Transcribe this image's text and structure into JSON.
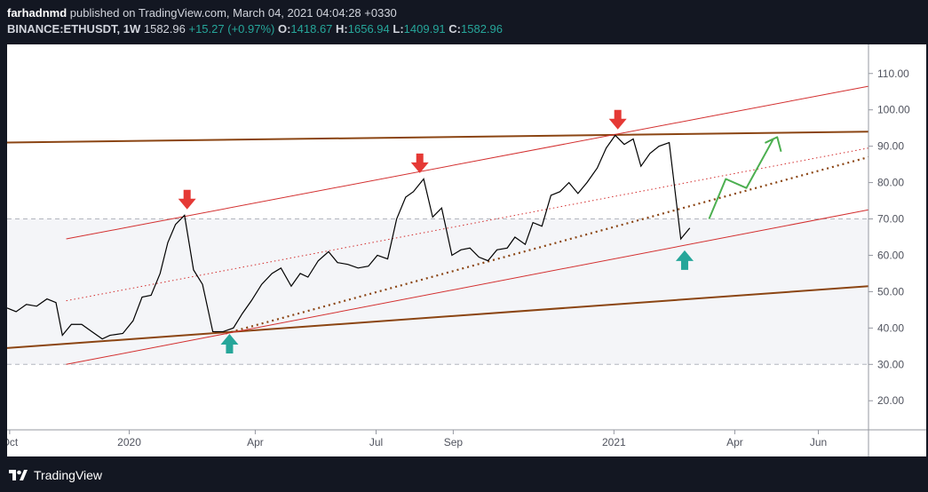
{
  "header": {
    "author": "farhadnmd",
    "published_text": "published on TradingView.com, March 04, 2021 04:04:28 +0330",
    "symbol": "BINANCE:ETHUSDT, 1W",
    "last": "1582.96",
    "change": "+15.27 (+0.97%)",
    "open_label": "O:",
    "open": "1418.67",
    "high_label": "H:",
    "high": "1656.94",
    "low_label": "L:",
    "low": "1409.91",
    "close_label": "C:",
    "close": "1582.96"
  },
  "footer": {
    "brand": "TradingView",
    "logo_icon": "tradingview-logo-icon"
  },
  "colors": {
    "background": "#131722",
    "panel": "#ffffff",
    "price_line": "#000000",
    "channel_red": "#d32f2f",
    "trend_brown": "#8b4513",
    "arrow_down": "#e53935",
    "arrow_up": "#26a69a",
    "projection": "#4caf50",
    "range_zone": "#f4f5f8"
  },
  "chart_data": {
    "type": "line",
    "title": "",
    "xlabel": "",
    "ylabel": "",
    "grid": false,
    "ylim": [
      12,
      118
    ],
    "xlim": [
      0,
      67
    ],
    "y_ticks": [
      "20.00",
      "30.00",
      "40.00",
      "50.00",
      "60.00",
      "70.00",
      "80.00",
      "90.00",
      "100.00",
      "110.00"
    ],
    "y_tick_values": [
      20,
      30,
      40,
      50,
      60,
      70,
      80,
      90,
      100,
      110
    ],
    "x_ticks": [
      {
        "label": "Oct",
        "week": 0.2
      },
      {
        "label": "2020",
        "week": 9.5
      },
      {
        "label": "Apr",
        "week": 19.3
      },
      {
        "label": "Jul",
        "week": 28.7
      },
      {
        "label": "Sep",
        "week": 34.7
      },
      {
        "label": "2021",
        "week": 47.2
      },
      {
        "label": "Apr",
        "week": 56.6
      },
      {
        "label": "Jun",
        "week": 63.1
      }
    ],
    "price": [
      [
        0,
        45.5
      ],
      [
        0.7,
        44.5
      ],
      [
        1.5,
        46.5
      ],
      [
        2.3,
        46
      ],
      [
        3.1,
        48
      ],
      [
        3.8,
        47
      ],
      [
        4.3,
        38
      ],
      [
        5,
        41
      ],
      [
        5.8,
        41
      ],
      [
        6.6,
        39
      ],
      [
        7.4,
        37
      ],
      [
        8,
        38
      ],
      [
        9,
        38.5
      ],
      [
        9.8,
        42
      ],
      [
        10.5,
        48.5
      ],
      [
        11.2,
        49
      ],
      [
        11.9,
        55
      ],
      [
        12.5,
        63.5
      ],
      [
        13.1,
        68.5
      ],
      [
        13.8,
        71
      ],
      [
        14.5,
        56
      ],
      [
        15.2,
        52
      ],
      [
        16,
        39
      ],
      [
        16.8,
        39
      ],
      [
        17.6,
        40
      ],
      [
        18.3,
        44
      ],
      [
        19,
        47.5
      ],
      [
        19.8,
        52
      ],
      [
        20.6,
        55
      ],
      [
        21.3,
        56.5
      ],
      [
        22.1,
        51.5
      ],
      [
        22.8,
        55
      ],
      [
        23.4,
        54
      ],
      [
        24.2,
        58.5
      ],
      [
        25,
        61
      ],
      [
        25.7,
        58
      ],
      [
        26.5,
        57.5
      ],
      [
        27.3,
        56.5
      ],
      [
        28.1,
        57
      ],
      [
        28.8,
        60
      ],
      [
        29.6,
        59
      ],
      [
        30.3,
        70
      ],
      [
        31,
        76
      ],
      [
        31.6,
        77.5
      ],
      [
        32.4,
        81
      ],
      [
        33.1,
        70.5
      ],
      [
        33.8,
        73
      ],
      [
        34.6,
        60
      ],
      [
        35.3,
        61.5
      ],
      [
        36,
        62
      ],
      [
        36.7,
        59.5
      ],
      [
        37.4,
        58.5
      ],
      [
        38.1,
        61.5
      ],
      [
        38.9,
        62
      ],
      [
        39.5,
        65
      ],
      [
        40.3,
        63
      ],
      [
        40.9,
        69
      ],
      [
        41.6,
        68
      ],
      [
        42.3,
        76.5
      ],
      [
        43,
        77.5
      ],
      [
        43.7,
        80
      ],
      [
        44.4,
        77
      ],
      [
        45.1,
        80
      ],
      [
        45.9,
        84
      ],
      [
        46.6,
        89.5
      ],
      [
        47.3,
        93
      ],
      [
        48,
        90.5
      ],
      [
        48.7,
        92
      ],
      [
        49.3,
        84.5
      ],
      [
        50,
        88
      ],
      [
        50.7,
        90
      ],
      [
        51.5,
        91
      ],
      [
        52.4,
        64.5
      ],
      [
        53.1,
        67.5
      ]
    ],
    "channel": {
      "upper": [
        [
          4.6,
          64.5
        ],
        [
          67,
          106.5
        ]
      ],
      "middle_dotted": [
        [
          4.6,
          47.5
        ],
        [
          67,
          89.5
        ]
      ],
      "lower": [
        [
          4.6,
          30
        ],
        [
          67,
          72.5
        ]
      ]
    },
    "trendlines": {
      "resistance": [
        [
          0,
          91
        ],
        [
          67,
          94
        ]
      ],
      "support": [
        [
          0,
          34.5
        ],
        [
          67,
          51.5
        ]
      ],
      "rising_dotted": [
        [
          17,
          38.5
        ],
        [
          67,
          87
        ]
      ]
    },
    "range_zone": [
      30,
      70
    ],
    "range_dashed_levels": [
      30,
      70
    ],
    "projection": [
      [
        54.6,
        70
      ],
      [
        55.9,
        81
      ],
      [
        57.5,
        78.5
      ],
      [
        59.6,
        92
      ],
      [
        59,
        91
      ],
      [
        59.9,
        92.5
      ],
      [
        60.2,
        88.5
      ]
    ],
    "annotations": {
      "down_arrows": [
        {
          "week": 14,
          "y": 78
        },
        {
          "week": 32.1,
          "y": 88
        },
        {
          "week": 47.5,
          "y": 100
        }
      ],
      "up_arrows": [
        {
          "week": 17.3,
          "y": 33
        },
        {
          "week": 52.7,
          "y": 56
        }
      ]
    }
  }
}
